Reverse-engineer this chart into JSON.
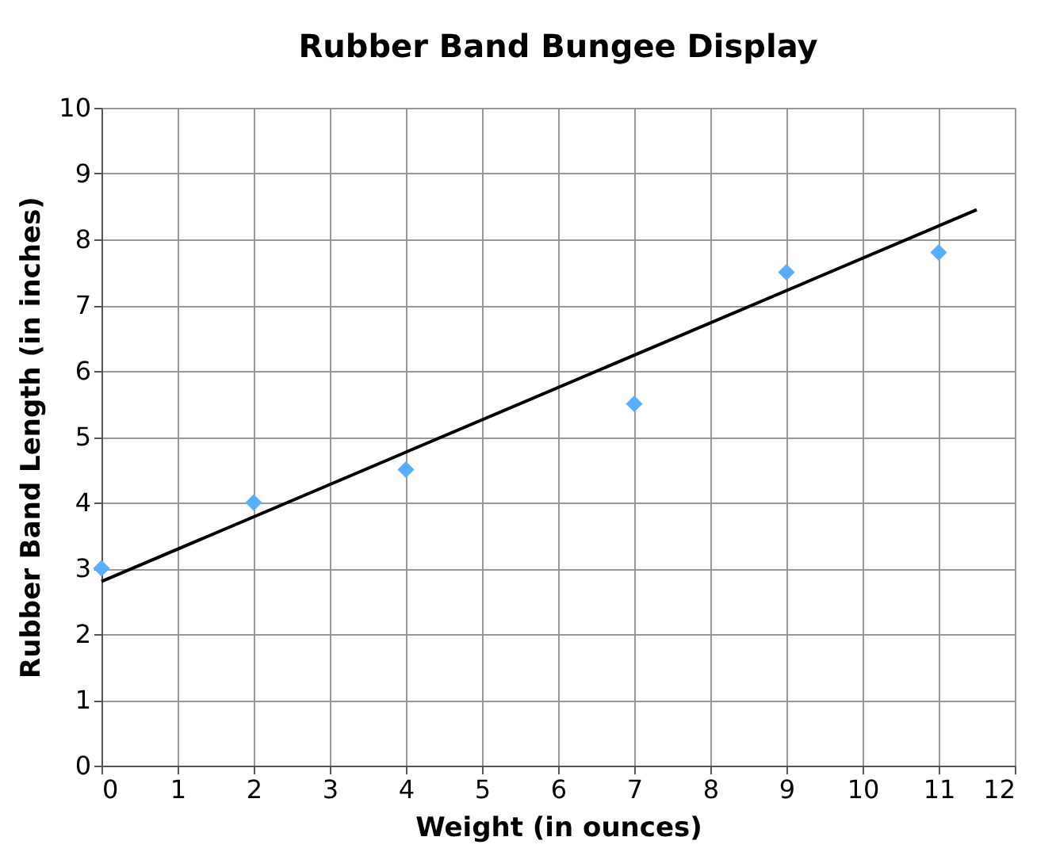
{
  "chart_data": {
    "type": "scatter",
    "title": "Rubber Band Bungee Display",
    "xlabel": "Weight (in ounces)",
    "ylabel": "Rubber Band Length (in inches)",
    "series": [
      {
        "type": "scatter",
        "color": "#5aaeff",
        "marker": "diamond",
        "x": [
          0,
          2,
          4,
          7,
          9,
          11
        ],
        "values": [
          3,
          4,
          4.5,
          5.5,
          7.5,
          7.8
        ]
      },
      {
        "type": "line",
        "color": "#000000",
        "marker": "none",
        "line_style": "solid",
        "x": [
          0,
          11.5
        ],
        "values": [
          2.8,
          8.45
        ]
      }
    ],
    "xlim": [
      0,
      12
    ],
    "xticks": [
      0,
      1,
      2,
      3,
      4,
      5,
      6,
      7,
      8,
      9,
      10,
      11,
      12
    ],
    "ylim": [
      0,
      10
    ],
    "yticks": [
      0,
      1,
      2,
      3,
      4,
      5,
      6,
      7,
      8,
      9,
      10
    ],
    "grid": true
  }
}
